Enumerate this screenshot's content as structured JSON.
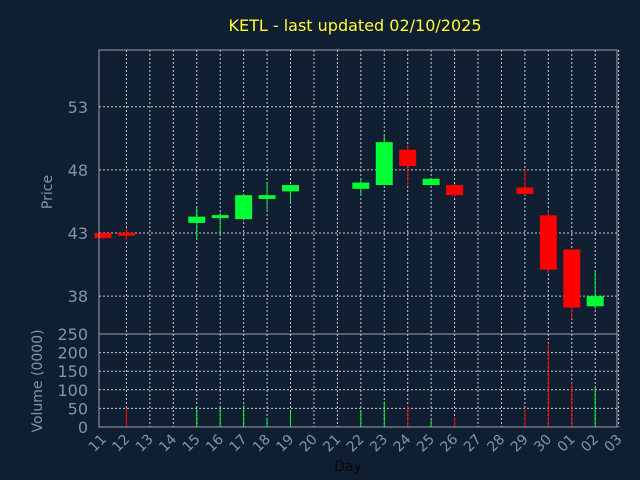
{
  "title": "KETL - last updated 02/10/2025",
  "chart_data": [
    {
      "type": "candlestick",
      "ylabel": "Price",
      "ylim": [
        35,
        57.5
      ],
      "yticks": [
        38,
        43,
        48,
        53
      ],
      "grid": true,
      "up_color": "#00ff33",
      "down_color": "#ff0000",
      "candles": [
        {
          "day": "11",
          "open": 43.0,
          "close": 42.6,
          "high": 43.1,
          "low": 42.5
        },
        {
          "day": "12",
          "open": 43.1,
          "close": 42.9,
          "high": 43.4,
          "low": 42.4
        },
        {
          "day": "15",
          "open": 43.8,
          "close": 44.3,
          "high": 45.0,
          "low": 42.5
        },
        {
          "day": "16",
          "open": 44.1,
          "close": 44.3,
          "high": 44.6,
          "low": 42.8
        },
        {
          "day": "17",
          "open": 44.1,
          "close": 46.0,
          "high": 46.0,
          "low": 44.0
        },
        {
          "day": "18",
          "open": 45.7,
          "close": 46.0,
          "high": 47.0,
          "low": 44.7
        },
        {
          "day": "19",
          "open": 46.3,
          "close": 46.8,
          "high": 46.8,
          "low": 45.4
        },
        {
          "day": "22",
          "open": 46.5,
          "close": 47.0,
          "high": 47.3,
          "low": 46.0
        },
        {
          "day": "23",
          "open": 46.8,
          "close": 50.2,
          "high": 50.8,
          "low": 46.8
        },
        {
          "day": "24",
          "open": 49.6,
          "close": 48.3,
          "high": 50.0,
          "low": 46.8
        },
        {
          "day": "25",
          "open": 46.8,
          "close": 47.3,
          "high": 47.3,
          "low": 46.8
        },
        {
          "day": "26",
          "open": 46.8,
          "close": 46.0,
          "high": 46.9,
          "low": 45.9
        },
        {
          "day": "29",
          "open": 46.6,
          "close": 46.1,
          "high": 48.1,
          "low": 46.0
        },
        {
          "day": "30",
          "open": 44.4,
          "close": 40.1,
          "high": 44.8,
          "low": 39.8
        },
        {
          "day": "01",
          "open": 41.7,
          "close": 37.1,
          "high": 41.7,
          "low": 36.2
        },
        {
          "day": "02",
          "open": 37.2,
          "close": 38.0,
          "high": 40.0,
          "low": 37.0
        }
      ]
    },
    {
      "type": "bar",
      "ylabel": "Volume (0000)",
      "xlabel": "Day",
      "ylim": [
        0,
        250
      ],
      "yticks": [
        0,
        50,
        100,
        150,
        200,
        250
      ],
      "x_ticks": [
        "11",
        "12",
        "13",
        "14",
        "15",
        "16",
        "17",
        "18",
        "19",
        "20",
        "21",
        "22",
        "23",
        "24",
        "25",
        "26",
        "27",
        "28",
        "29",
        "30",
        "01",
        "02",
        "03"
      ],
      "bars": [
        {
          "day": "12",
          "value": 52,
          "color": "#ff0000"
        },
        {
          "day": "15",
          "value": 48,
          "color": "#00ff33"
        },
        {
          "day": "16",
          "value": 50,
          "color": "#00ff33"
        },
        {
          "day": "17",
          "value": 58,
          "color": "#00ff33"
        },
        {
          "day": "18",
          "value": 25,
          "color": "#00ff33"
        },
        {
          "day": "19",
          "value": 42,
          "color": "#00ff33"
        },
        {
          "day": "22",
          "value": 45,
          "color": "#00ff33"
        },
        {
          "day": "23",
          "value": 68,
          "color": "#00ff33"
        },
        {
          "day": "24",
          "value": 58,
          "color": "#ff0000"
        },
        {
          "day": "25",
          "value": 18,
          "color": "#00ff33"
        },
        {
          "day": "26",
          "value": 25,
          "color": "#ff0000"
        },
        {
          "day": "29",
          "value": 52,
          "color": "#ff0000"
        },
        {
          "day": "30",
          "value": 225,
          "color": "#ff0000"
        },
        {
          "day": "01",
          "value": 120,
          "color": "#ff0000"
        },
        {
          "day": "02",
          "value": 105,
          "color": "#00ff33"
        }
      ]
    }
  ]
}
